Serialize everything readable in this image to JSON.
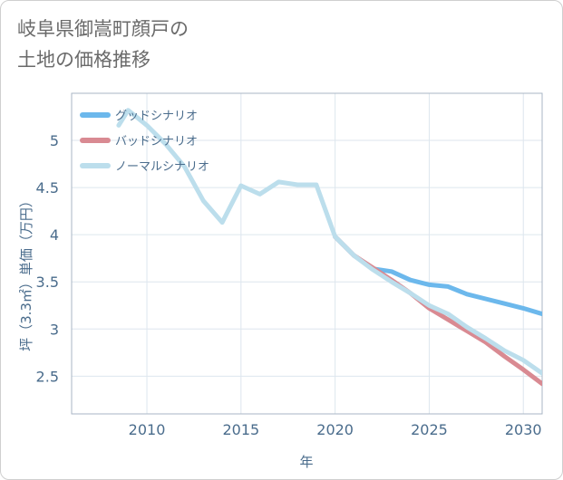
{
  "title_lines": [
    "岐阜県御嵩町顔戸の",
    "土地の価格推移"
  ],
  "chart_data": {
    "type": "line",
    "xlabel": "年",
    "ylabel": "坪（3.3㎡）単価（万円）",
    "xlim": [
      2006,
      2031
    ],
    "ylim": [
      2.1,
      5.5
    ],
    "xticks": [
      2010,
      2015,
      2020,
      2025,
      2030
    ],
    "yticks": [
      2.5,
      3,
      3.5,
      4,
      4.5,
      5
    ],
    "ytick_labels": [
      "2.5",
      "3",
      "3.5",
      "4",
      "4.5",
      "5"
    ],
    "xtick_labels": [
      "2010",
      "2015",
      "2020",
      "2025",
      "2030"
    ],
    "grid": true,
    "legend_position": "top-left",
    "series": [
      {
        "name": "グッドシナリオ",
        "color": "#6cb8ec",
        "x": [
          2020,
          2021,
          2022,
          2023,
          2024,
          2025,
          2026,
          2027,
          2028,
          2029,
          2030,
          2031
        ],
        "y": [
          3.98,
          3.78,
          3.64,
          3.61,
          3.52,
          3.47,
          3.45,
          3.37,
          3.32,
          3.27,
          3.22,
          3.16
        ]
      },
      {
        "name": "バッドシナリオ",
        "color": "#d98a92",
        "x": [
          2020,
          2021,
          2022,
          2023,
          2024,
          2025,
          2026,
          2027,
          2028,
          2029,
          2030,
          2031
        ],
        "y": [
          3.98,
          3.78,
          3.65,
          3.52,
          3.38,
          3.22,
          3.1,
          2.98,
          2.86,
          2.71,
          2.57,
          2.42
        ]
      },
      {
        "name": "ノーマルシナリオ",
        "color": "#bcdeec",
        "x": [
          2008.5,
          2009,
          2010,
          2011,
          2012,
          2013,
          2014,
          2015,
          2016,
          2017,
          2018,
          2019,
          2020,
          2021,
          2022,
          2023,
          2024,
          2025,
          2026,
          2027,
          2028,
          2029,
          2030,
          2031
        ],
        "y": [
          5.16,
          5.32,
          5.16,
          4.96,
          4.72,
          4.36,
          4.13,
          4.52,
          4.43,
          4.56,
          4.53,
          4.53,
          3.98,
          3.78,
          3.63,
          3.5,
          3.38,
          3.25,
          3.16,
          3.02,
          2.9,
          2.77,
          2.67,
          2.53
        ]
      }
    ]
  }
}
